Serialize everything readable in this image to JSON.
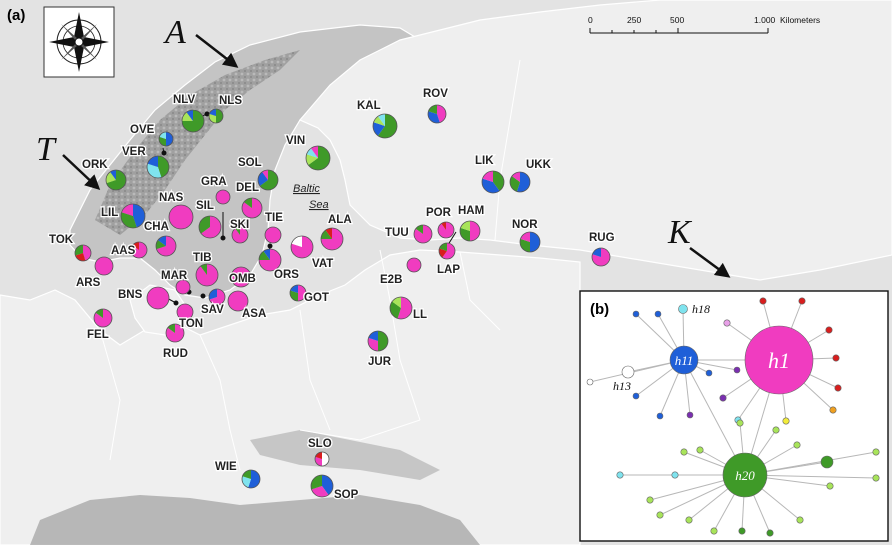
{
  "panel_a": {
    "label": "(a)",
    "sea_label_line1": "Baltic",
    "sea_label_line2": "Sea",
    "scale_bar": {
      "ticks": [
        "0",
        "250",
        "500",
        "1.000"
      ],
      "unit": "Kilometers"
    },
    "arrows": [
      {
        "id": "A",
        "label": "A"
      },
      {
        "id": "T",
        "label": "T"
      },
      {
        "id": "K",
        "label": "K"
      }
    ]
  },
  "colors": {
    "pink": "#f03cc0",
    "green": "#3f9a28",
    "blue": "#1f5fd8",
    "cyan": "#7fe3ee",
    "lime": "#a8e45a",
    "red": "#d81e1e",
    "yellow": "#f2ec3a",
    "purple": "#7a2fb0",
    "orange": "#f0a020",
    "white": "#ffffff"
  },
  "sites": [
    {
      "code": "NLV",
      "comp": {
        "green": 0.75,
        "lime": 0.15,
        "blue": 0.1
      }
    },
    {
      "code": "NLS",
      "comp": {
        "green": 0.5,
        "lime": 0.3,
        "blue": 0.2
      }
    },
    {
      "code": "OVE",
      "comp": {
        "blue": 0.5,
        "green": 0.3,
        "cyan": 0.2
      }
    },
    {
      "code": "VER",
      "comp": {
        "green": 0.45,
        "cyan": 0.35,
        "blue": 0.2
      }
    },
    {
      "code": "ORK",
      "comp": {
        "green": 0.7,
        "lime": 0.2,
        "blue": 0.1
      }
    },
    {
      "code": "SOL",
      "comp": {
        "green": 0.65,
        "blue": 0.25,
        "pink": 0.1
      }
    },
    {
      "code": "VIN",
      "comp": {
        "green": 0.65,
        "lime": 0.15,
        "cyan": 0.1,
        "pink": 0.1
      }
    },
    {
      "code": "KAL",
      "comp": {
        "green": 0.6,
        "blue": 0.2,
        "lime": 0.1,
        "cyan": 0.1
      }
    },
    {
      "code": "ROV",
      "comp": {
        "pink": 0.45,
        "blue": 0.35,
        "green": 0.2
      }
    },
    {
      "code": "LIK",
      "comp": {
        "green": 0.4,
        "blue": 0.4,
        "pink": 0.2
      }
    },
    {
      "code": "UKK",
      "comp": {
        "blue": 0.55,
        "green": 0.3,
        "pink": 0.15
      }
    },
    {
      "code": "GRA",
      "comp": {
        "pink": 1.0
      }
    },
    {
      "code": "DEL",
      "comp": {
        "pink": 0.85,
        "green": 0.15
      }
    },
    {
      "code": "NAS",
      "comp": {
        "pink": 1.0
      }
    },
    {
      "code": "SIL",
      "comp": {
        "pink": 0.65,
        "green": 0.35
      }
    },
    {
      "code": "LIL",
      "comp": {
        "blue": 0.45,
        "green": 0.35,
        "pink": 0.2
      }
    },
    {
      "code": "CHA",
      "comp": {
        "pink": 0.7,
        "green": 0.15,
        "blue": 0.15
      }
    },
    {
      "code": "SKI",
      "comp": {
        "pink": 0.9,
        "green": 0.1
      }
    },
    {
      "code": "TIE",
      "comp": {
        "pink": 1.0
      }
    },
    {
      "code": "ALA",
      "comp": {
        "pink": 0.75,
        "green": 0.15,
        "red": 0.1
      }
    },
    {
      "code": "TUU",
      "comp": {
        "pink": 0.85,
        "green": 0.15
      }
    },
    {
      "code": "POR",
      "comp": {
        "pink": 0.9,
        "red": 0.1
      }
    },
    {
      "code": "HAM",
      "comp": {
        "pink": 0.5,
        "green": 0.3,
        "lime": 0.2
      }
    },
    {
      "code": "NOR",
      "comp": {
        "blue": 0.5,
        "green": 0.3,
        "pink": 0.2
      }
    },
    {
      "code": "RUG",
      "comp": {
        "pink": 0.8,
        "blue": 0.2
      }
    },
    {
      "code": "TOK",
      "comp": {
        "pink": 0.45,
        "red": 0.25,
        "green": 0.3
      }
    },
    {
      "code": "AAS",
      "comp": {
        "pink": 0.85,
        "red": 0.15
      }
    },
    {
      "code": "ARS",
      "comp": {
        "pink": 1.0
      }
    },
    {
      "code": "TIB",
      "comp": {
        "pink": 0.9,
        "green": 0.1
      }
    },
    {
      "code": "OMB",
      "comp": {
        "pink": 1.0
      }
    },
    {
      "code": "ORS",
      "comp": {
        "pink": 0.75,
        "green": 0.15,
        "blue": 0.1
      }
    },
    {
      "code": "VAT",
      "comp": {
        "pink": 0.8,
        "white": 0.2
      }
    },
    {
      "code": "LAP",
      "comp": {
        "pink": 0.6,
        "red": 0.2,
        "green": 0.2
      }
    },
    {
      "code": "E2B",
      "comp": {
        "pink": 1.0
      }
    },
    {
      "code": "MAR",
      "comp": {
        "pink": 1.0
      }
    },
    {
      "code": "BNS",
      "comp": {
        "pink": 1.0
      }
    },
    {
      "code": "SAV",
      "comp": {
        "pink": 0.7,
        "blue": 0.3
      }
    },
    {
      "code": "ASA",
      "comp": {
        "pink": 1.0
      }
    },
    {
      "code": "GOT",
      "comp": {
        "pink": 0.5,
        "green": 0.3,
        "blue": 0.2
      }
    },
    {
      "code": "TON",
      "comp": {
        "pink": 1.0
      }
    },
    {
      "code": "FEL",
      "comp": {
        "pink": 0.85,
        "green": 0.15
      }
    },
    {
      "code": "RUD",
      "comp": {
        "pink": 0.85,
        "green": 0.15
      }
    },
    {
      "code": "LL",
      "comp": {
        "pink": 0.55,
        "green": 0.3,
        "lime": 0.15
      }
    },
    {
      "code": "JUR",
      "comp": {
        "green": 0.5,
        "pink": 0.3,
        "blue": 0.2
      }
    },
    {
      "code": "SLO",
      "comp": {
        "white": 0.5,
        "pink": 0.3,
        "red": 0.2
      }
    },
    {
      "code": "WIE",
      "comp": {
        "blue": 0.55,
        "cyan": 0.25,
        "green": 0.2
      }
    },
    {
      "code": "SOP",
      "comp": {
        "blue": 0.4,
        "pink": 0.3,
        "green": 0.3
      }
    }
  ],
  "panel_b": {
    "label": "(b)",
    "haplotypes": [
      {
        "id": "h1",
        "label": "h1",
        "color": "#f03cc0"
      },
      {
        "id": "h11",
        "label": "h11",
        "color": "#1f5fd8"
      },
      {
        "id": "h20",
        "label": "h20",
        "color": "#3f9a28"
      },
      {
        "id": "h18",
        "label": "h18",
        "color": "#7fe3ee"
      },
      {
        "id": "h13",
        "label": "h13",
        "color": "#ffffff"
      }
    ]
  }
}
